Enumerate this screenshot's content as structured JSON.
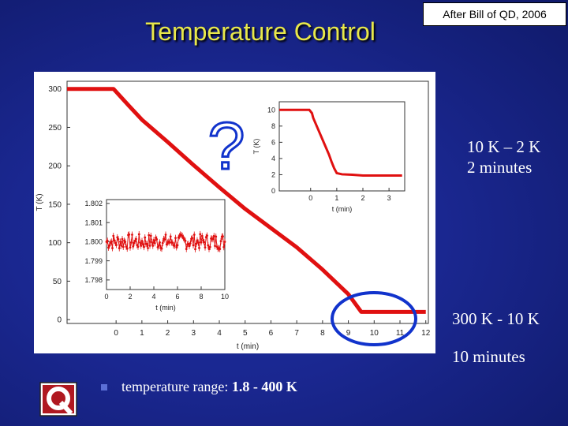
{
  "slide": {
    "title": "Temperature Control",
    "credit": "After Bill of QD, 2006",
    "notes": [
      {
        "line1": "10 K – 2 K",
        "line2": "2 minutes"
      },
      {
        "line1": "300 K - 10 K",
        "line2": "10 minutes"
      }
    ],
    "bullet_prefix": "temperature range: ",
    "bullet_value": "1.8 - 400 K",
    "question_mark": "?",
    "colors": {
      "title": "#e8e84a",
      "background": "#1a2790",
      "trace": "#e01010",
      "circle": "#1133cc"
    }
  },
  "chart_data": [
    {
      "type": "line",
      "title": "",
      "xlabel": "t (min)",
      "ylabel": "T (K)",
      "xlim": [
        -1.9,
        12.1
      ],
      "ylim": [
        -5,
        310
      ],
      "xticks": [
        0,
        1,
        2,
        3,
        4,
        5,
        6,
        7,
        8,
        9,
        10,
        11,
        12
      ],
      "yticks": [
        0,
        50,
        100,
        150,
        200,
        250,
        300
      ],
      "series": [
        {
          "x": [
            -1.9,
            -0.1,
            0.5,
            1.0,
            2.0,
            3.0,
            4.0,
            5.0,
            6.0,
            7.0,
            8.0,
            9.0,
            9.5,
            10.0,
            11.0,
            12.0
          ],
          "y": [
            300,
            300,
            278,
            260,
            231,
            201,
            172,
            144,
            119,
            94,
            65,
            33,
            10,
            10,
            10,
            10
          ]
        }
      ]
    },
    {
      "type": "line",
      "title": "",
      "xlabel": "t (min)",
      "ylabel": "T (K)",
      "xlim": [
        -1.2,
        3.6
      ],
      "ylim": [
        0,
        11
      ],
      "xticks": [
        0,
        1,
        2,
        3
      ],
      "yticks": [
        0,
        2,
        4,
        6,
        8,
        10
      ],
      "series": [
        {
          "x": [
            -1.2,
            -0.05,
            0.05,
            0.1,
            0.3,
            0.5,
            0.7,
            0.8,
            0.9,
            1.0,
            1.2,
            1.6,
            2.0,
            2.5,
            3.0,
            3.5
          ],
          "y": [
            10,
            10,
            9.6,
            9.0,
            7.5,
            6.0,
            4.5,
            3.6,
            2.8,
            2.2,
            2.05,
            2.0,
            1.9,
            1.9,
            1.9,
            1.9
          ]
        }
      ]
    },
    {
      "type": "scatter",
      "title": "",
      "xlabel": "t (min)",
      "ylabel": "",
      "xlim": [
        0,
        10
      ],
      "ylim": [
        1.7975,
        1.8022
      ],
      "xticks": [
        0,
        2,
        4,
        6,
        8,
        10
      ],
      "yticks": [
        1.798,
        1.799,
        1.8,
        1.801,
        1.802
      ],
      "series": [
        {
          "noise_center": 1.8,
          "noise_amplitude": 0.0004,
          "x_start": 0,
          "x_end": 10
        }
      ]
    }
  ]
}
